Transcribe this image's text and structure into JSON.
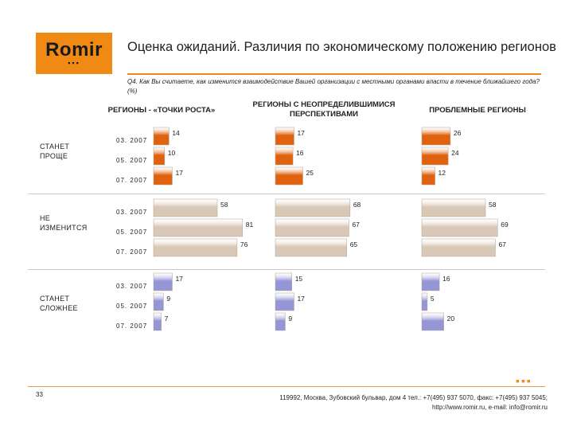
{
  "logo": {
    "text": "Romir",
    "dots": "▪▪▪"
  },
  "title": "Оценка ожиданий. Различия по экономическому положению регионов",
  "subtitle": "Q4. Как Вы считаете, как изменится взаимодействие Вашей организации с местными органами власти в течение ближайшего года? (%)",
  "column_headers": [
    "РЕГИОНЫ - «ТОЧКИ РОСТА»",
    "РЕГИОНЫ С НЕОПРЕДЕЛИВШИМИСЯ ПЕРСПЕКТИВАМИ",
    "ПРОБЛЕМНЫЕ РЕГИОНЫ"
  ],
  "group_labels": [
    "СТАНЕТ ПРОЩЕ",
    "НЕ ИЗМЕНИТСЯ",
    "СТАНЕТ СЛОЖНЕЕ"
  ],
  "footer": {
    "page": "33",
    "dots": "▪▪▪",
    "address": "119992, Москва, Зубовский бульвар, дом 4 тел.: +7(495) 937 5070, факс: +7(495) 937 5045;",
    "web": "http://www.romir.ru, e-mail: info@romir.ru"
  },
  "chart_data": {
    "type": "bar",
    "orientation": "horizontal",
    "groups": [
      "СТАНЕТ ПРОЩЕ",
      "НЕ ИЗМЕНИТСЯ",
      "СТАНЕТ СЛОЖНЕЕ"
    ],
    "periods": [
      "03. 2007",
      "05. 2007",
      "07. 2007"
    ],
    "panels": [
      {
        "name": "РЕГИОНЫ - «ТОЧКИ РОСТА»",
        "values": [
          [
            14,
            10,
            17
          ],
          [
            58,
            81,
            76
          ],
          [
            17,
            9,
            7
          ]
        ]
      },
      {
        "name": "РЕГИОНЫ С НЕОПРЕДЕЛИВШИМИСЯ ПЕРСПЕКТИВАМИ",
        "values": [
          [
            17,
            16,
            25
          ],
          [
            68,
            67,
            65
          ],
          [
            15,
            17,
            9
          ]
        ]
      },
      {
        "name": "ПРОБЛЕМНЫЕ РЕГИОНЫ",
        "values": [
          [
            26,
            24,
            12
          ],
          [
            58,
            69,
            67
          ],
          [
            16,
            5,
            20
          ]
        ]
      }
    ],
    "colors": {
      "СТАНЕТ ПРОЩЕ": "#e0620e",
      "НЕ ИЗМЕНИТСЯ": "#d9c8b6",
      "СТАНЕТ СЛОЖНЕЕ": "#9496d6"
    },
    "xlim": [
      0,
      100
    ]
  }
}
